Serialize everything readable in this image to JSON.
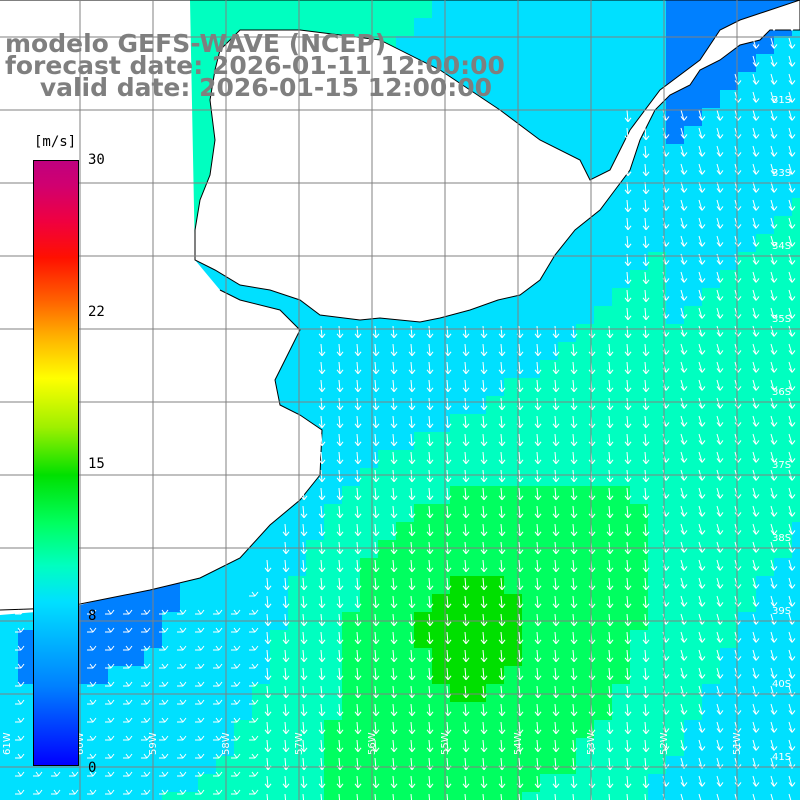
{
  "title": {
    "line1": "modelo GEFS-WAVE (NCEP)",
    "line2": "forecast date: 2026-01-11 12:00:00",
    "line3": "    valid date: 2026-01-15 12:00:00"
  },
  "colorbar": {
    "unit": "[m/s]",
    "ticks": [
      "30",
      "22",
      "15",
      "8",
      "0"
    ],
    "min": 0,
    "max": 30,
    "colors": [
      "#0000ff",
      "#0080ff",
      "#00e0ff",
      "#00ffc0",
      "#00ff60",
      "#00e000",
      "#a0f000",
      "#ffff00",
      "#ffb000",
      "#ff6000",
      "#ff1000",
      "#d00070"
    ]
  },
  "map": {
    "variable": "wind speed",
    "arrow_direction": "southwest to south",
    "land_color": "#ffffff",
    "gridline_color": "#808080",
    "lat_labels_right": [
      "31S",
      "33S",
      "34S",
      "35S",
      "36S",
      "37S",
      "38S",
      "39S",
      "40S",
      "41S"
    ],
    "lon_labels_bottom": [
      "61W",
      "60W",
      "59W",
      "58W",
      "57W",
      "56W",
      "55W",
      "54W",
      "53W",
      "52W",
      "51W"
    ]
  }
}
